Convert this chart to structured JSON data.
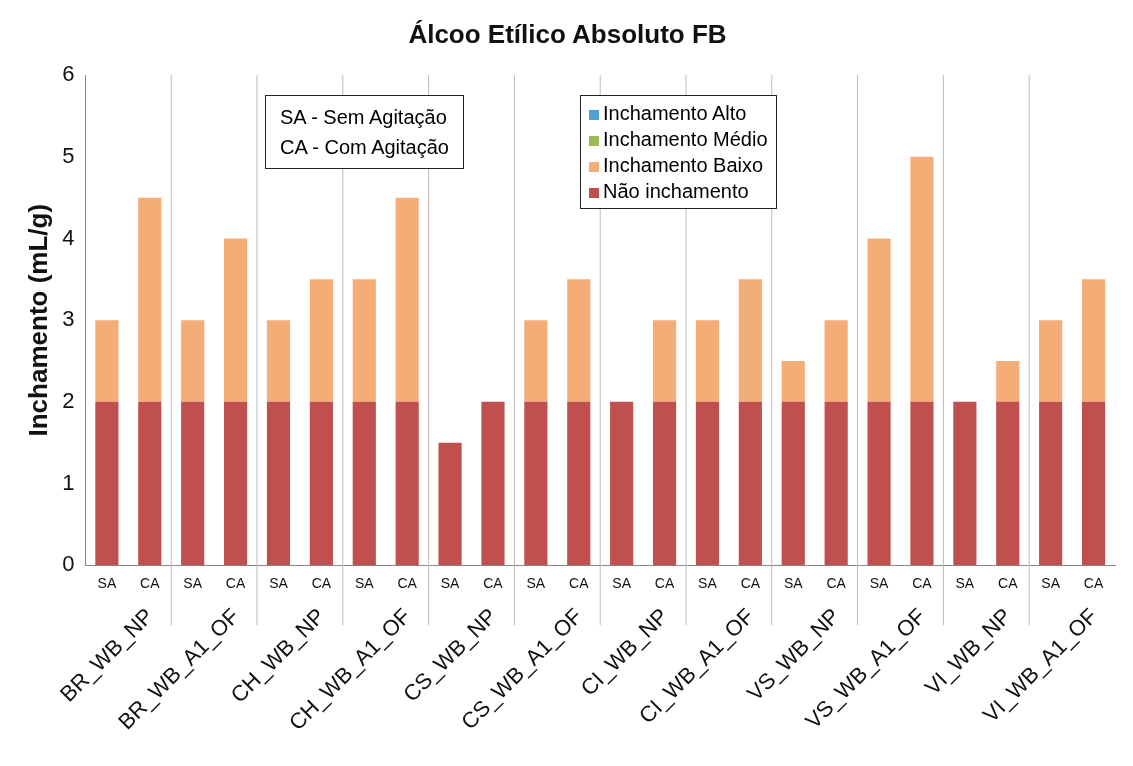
{
  "chart_data": {
    "type": "bar",
    "title": "Álcoo Etílico Absoluto FB",
    "ylabel": "Inchamento (mL/g)",
    "categories": [
      "SA",
      "CA",
      "SA",
      "CA",
      "SA",
      "CA",
      "SA",
      "CA",
      "SA",
      "CA",
      "SA",
      "CA",
      "SA",
      "CA",
      "SA",
      "CA",
      "SA",
      "CA",
      "SA",
      "CA",
      "SA",
      "CA",
      "SA",
      "CA"
    ],
    "stacked": true,
    "grid": "x",
    "legend": "top",
    "ylim": [
      0,
      6
    ],
    "yticks": [
      0,
      1,
      2,
      3,
      4,
      5,
      6
    ],
    "series": [
      {
        "name": "Não inchamento",
        "color": "#c0504d",
        "values": [
          2,
          2,
          2,
          2,
          2,
          2,
          2,
          2,
          1.5,
          2,
          2,
          2,
          2,
          2,
          2,
          2,
          2,
          2,
          2,
          2,
          2,
          2,
          2,
          2
        ]
      },
      {
        "name": "Inchamento Baixo",
        "color": "#f5ad78",
        "values": [
          1,
          2.5,
          1,
          2,
          1,
          1.5,
          1.5,
          2.5,
          0,
          0,
          1,
          1.5,
          0,
          1,
          1,
          1.5,
          0.5,
          1,
          2,
          3,
          0,
          0.5,
          1,
          1.5
        ]
      },
      {
        "name": "Inchamento Médio",
        "color": "#9bbb59",
        "values": [
          0,
          0,
          0,
          0,
          0,
          0,
          0,
          0,
          0,
          0,
          0,
          0,
          0,
          0,
          0,
          0,
          0,
          0,
          0,
          0,
          0,
          0,
          0,
          0
        ]
      },
      {
        "name": "Inchamento Alto",
        "color": "#4f9fd8",
        "values": [
          0,
          0,
          0,
          0,
          0,
          0,
          0,
          0,
          0,
          0,
          0,
          0,
          0,
          0,
          0,
          0,
          0,
          0,
          0,
          0,
          0,
          0,
          0,
          0
        ]
      }
    ],
    "annotations": [
      "SA - Sem Agitação",
      "CA - Com Agitação",
      "BR_WB_NP",
      "BR_WB_A1_OF",
      "CH_WB_NP",
      "CH_WB_A1_OF",
      "CS_WB_NP",
      "CS_WB_A1_OF",
      "CI_WB_NP",
      "CI_WB_A1_OF",
      "VS_WB_NP",
      "VS_WB_A1_OF",
      "VI_WB_NP",
      "VI_WB_A1_OF"
    ]
  }
}
